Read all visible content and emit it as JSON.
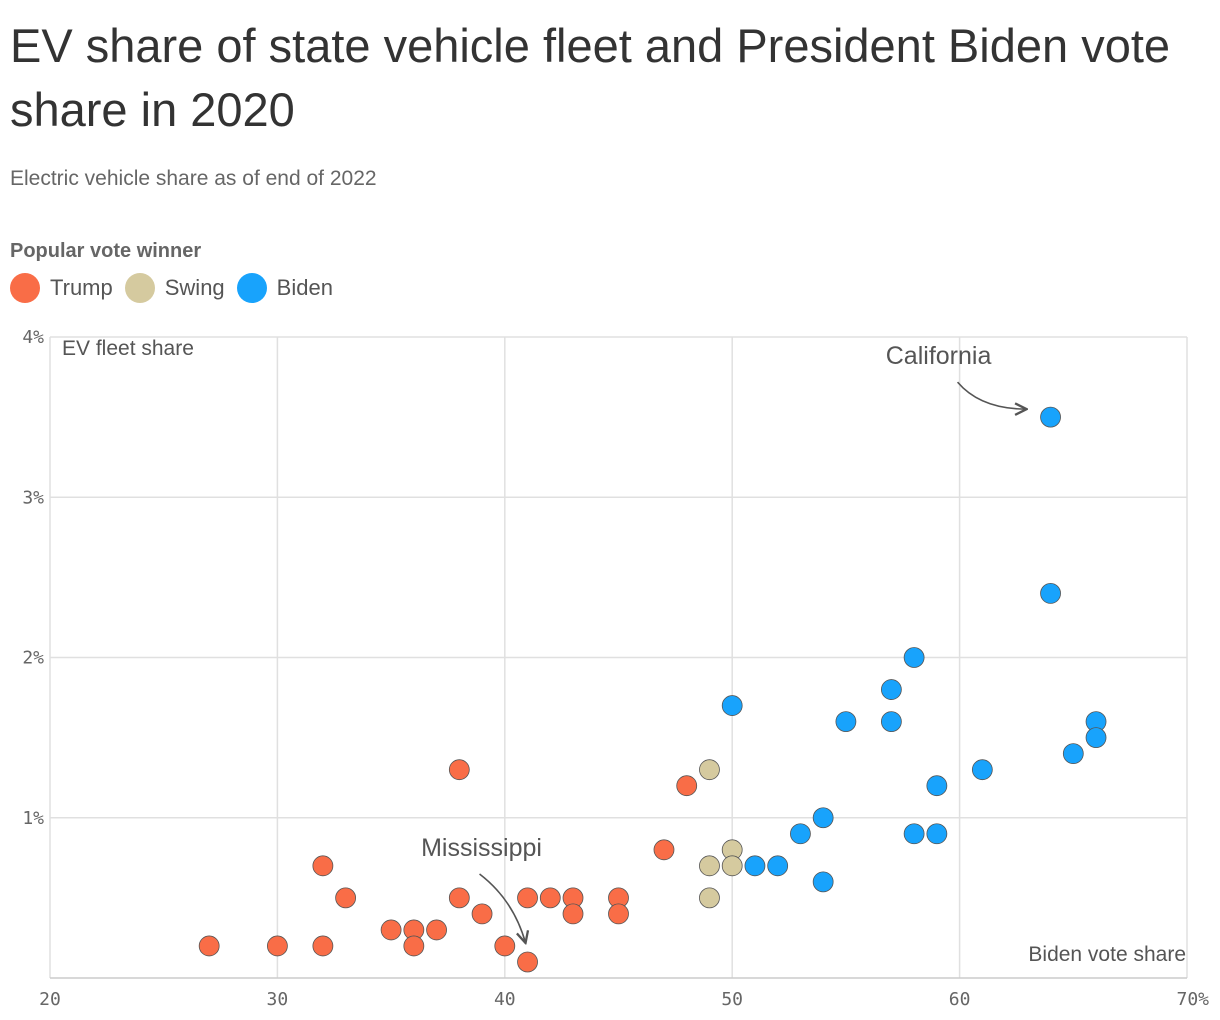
{
  "header": {
    "title": "EV share of state vehicle fleet and President Biden vote share in 2020",
    "subtitle": "Electric vehicle share as of end of 2022"
  },
  "legend": {
    "title": "Popular vote winner",
    "items": [
      {
        "label": "Trump",
        "color": "#f96d47"
      },
      {
        "label": "Swing",
        "color": "#d5ca9f"
      },
      {
        "label": "Biden",
        "color": "#18a3fc"
      }
    ]
  },
  "chart_data": {
    "type": "scatter",
    "xlabel": "Biden vote share",
    "ylabel": "EV fleet share",
    "xlim": [
      20,
      70
    ],
    "ylim": [
      0,
      4
    ],
    "x_ticks": [
      "20",
      "30",
      "40",
      "50",
      "60",
      "70%"
    ],
    "y_ticks": [
      "1%",
      "2%",
      "3%",
      "4%"
    ],
    "grid": true,
    "legend_position": "top-left",
    "series": [
      {
        "name": "Trump",
        "color": "#f96d47",
        "points": [
          [
            27,
            0.2
          ],
          [
            30,
            0.2
          ],
          [
            32,
            0.2
          ],
          [
            32,
            0.7
          ],
          [
            33,
            0.5
          ],
          [
            35,
            0.3
          ],
          [
            36,
            0.3
          ],
          [
            36,
            0.2
          ],
          [
            37,
            0.3
          ],
          [
            38,
            0.5
          ],
          [
            38,
            1.3
          ],
          [
            39,
            0.4
          ],
          [
            40,
            0.2
          ],
          [
            41,
            0.1
          ],
          [
            41,
            0.5
          ],
          [
            42,
            0.5
          ],
          [
            43,
            0.5
          ],
          [
            43,
            0.4
          ],
          [
            45,
            0.5
          ],
          [
            45,
            0.4
          ],
          [
            47,
            0.8
          ],
          [
            48,
            1.2
          ]
        ]
      },
      {
        "name": "Swing",
        "color": "#d5ca9f",
        "points": [
          [
            49,
            1.3
          ],
          [
            49,
            0.7
          ],
          [
            49,
            0.5
          ],
          [
            50,
            0.8
          ],
          [
            50,
            0.7
          ]
        ]
      },
      {
        "name": "Biden",
        "color": "#18a3fc",
        "points": [
          [
            50,
            1.7
          ],
          [
            51,
            0.7
          ],
          [
            52,
            0.7
          ],
          [
            53,
            0.9
          ],
          [
            54,
            1.0
          ],
          [
            54,
            0.6
          ],
          [
            55,
            1.6
          ],
          [
            57,
            1.8
          ],
          [
            57,
            1.6
          ],
          [
            58,
            2.0
          ],
          [
            58,
            0.9
          ],
          [
            59,
            1.2
          ],
          [
            59,
            0.9
          ],
          [
            61,
            1.3
          ],
          [
            64,
            3.5
          ],
          [
            64,
            2.4
          ],
          [
            65,
            1.4
          ],
          [
            66,
            1.6
          ],
          [
            66,
            1.5
          ]
        ]
      }
    ],
    "annotations": [
      {
        "label": "California",
        "point": [
          64,
          3.5
        ]
      },
      {
        "label": "Mississippi",
        "point": [
          41,
          0.1
        ]
      }
    ]
  }
}
